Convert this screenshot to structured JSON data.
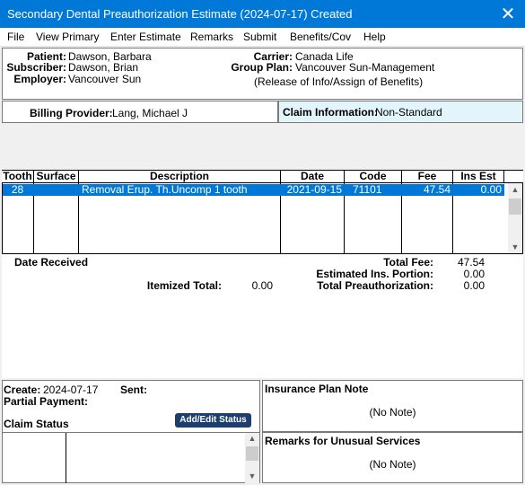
{
  "window": {
    "title": "Secondary Dental Preauthorization Estimate (2024-07-17) Created",
    "close_glyph": "✕"
  },
  "menu": [
    "File",
    "View Primary",
    "Enter Estimate",
    "Remarks",
    "Submit",
    "Benefits/Cov",
    "Help"
  ],
  "info": {
    "patient_label": "Patient:",
    "patient": "Dawson, Barbara",
    "subscriber_label": "Subscriber:",
    "subscriber": "Dawson, Brian",
    "employer_label": "Employer:",
    "employer": "Vancouver Sun",
    "carrier_label": "Carrier:",
    "carrier": "Canada Life",
    "group_plan_label": "Group Plan:",
    "group_plan": "Vancouver Sun-Management",
    "release_note": "(Release of Info/Assign of Benefits)"
  },
  "billing": {
    "label": "Billing Provider:",
    "value": "Lang, Michael J"
  },
  "claim_info": {
    "label": "Claim Information:",
    "value": "Non-Standard"
  },
  "table": {
    "headers": [
      "Tooth",
      "Surface",
      "Description",
      "Date",
      "Code",
      "Fee",
      "Ins Est"
    ],
    "rows": [
      {
        "tooth": "28",
        "surface": "",
        "description": "Removal Erup. Th.Uncomp 1 tooth",
        "date": "2021-09-15",
        "code": "71101",
        "fee": "47.54",
        "ins_est": "0.00"
      }
    ]
  },
  "totals": {
    "date_received_label": "Date Received",
    "itemized_total_label": "Itemized Total:",
    "itemized_total": "0.00",
    "total_fee_label": "Total Fee:",
    "total_fee": "47.54",
    "est_ins_label": "Estimated Ins. Portion:",
    "est_ins": "0.00",
    "total_preauth_label": "Total Preauthorization:",
    "total_preauth": "0.00"
  },
  "status": {
    "create_label": "Create:",
    "create": "2024-07-17",
    "sent_label": "Sent:",
    "partial_payment_label": "Partial Payment:",
    "claim_status_label": "Claim Status",
    "add_edit_button": "Add/Edit Status"
  },
  "notes": {
    "plan_note_label": "Insurance Plan Note",
    "plan_note": "(No Note)",
    "remarks_label": "Remarks for Unusual Services",
    "remarks": "(No Note)"
  },
  "colors": {
    "titlebar": "#0078d7",
    "selection": "#0078d7",
    "button": "#1c3f6e",
    "claim_panel": "#e1f5fb"
  }
}
